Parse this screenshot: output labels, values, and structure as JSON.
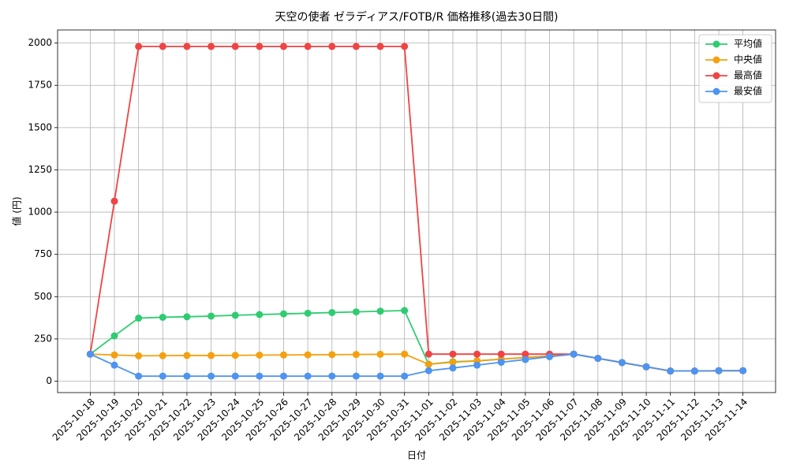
{
  "chart_data": {
    "type": "line",
    "title": "天空の使者 ゼラディアス/FOTB/R 価格推移(過去30日間)",
    "x_label": "日付",
    "y_label": "値 (円)",
    "categories": [
      "2025-10-18",
      "2025-10-19",
      "2025-10-20",
      "2025-10-21",
      "2025-10-22",
      "2025-10-23",
      "2025-10-24",
      "2025-10-25",
      "2025-10-26",
      "2025-10-27",
      "2025-10-28",
      "2025-10-29",
      "2025-10-30",
      "2025-10-31",
      "2025-11-01",
      "2025-11-02",
      "2025-11-03",
      "2025-11-04",
      "2025-11-05",
      "2025-11-06",
      "2025-11-07",
      "2025-11-08",
      "2025-11-09",
      "2025-11-10",
      "2025-11-11",
      "2025-11-12",
      "2025-11-13",
      "2025-11-14"
    ],
    "series": [
      {
        "name": "平均値",
        "color": "#2ecc71",
        "values": [
          160,
          268,
          373,
          378,
          381,
          385,
          390,
          394,
          398,
          402,
          406,
          410,
          414,
          418,
          100,
          115,
          120,
          130,
          140,
          150,
          160,
          135,
          110,
          85,
          60,
          60,
          62,
          62
        ]
      },
      {
        "name": "中央値",
        "color": "#f5a00f",
        "values": [
          160,
          155,
          150,
          151,
          152,
          152,
          153,
          154,
          155,
          156,
          157,
          158,
          159,
          160,
          100,
          112,
          120,
          130,
          140,
          150,
          160,
          135,
          110,
          85,
          60,
          60,
          62,
          62
        ]
      },
      {
        "name": "最高値",
        "color": "#ef4444",
        "values": [
          160,
          1065,
          1980,
          1980,
          1980,
          1980,
          1980,
          1980,
          1980,
          1980,
          1980,
          1980,
          1980,
          1980,
          160,
          160,
          160,
          160,
          160,
          160,
          160,
          135,
          110,
          85,
          60,
          60,
          62,
          62
        ]
      },
      {
        "name": "最安値",
        "color": "#4e94f0",
        "values": [
          160,
          95,
          30,
          30,
          30,
          30,
          30,
          30,
          30,
          30,
          30,
          30,
          30,
          30,
          62,
          78,
          95,
          112,
          128,
          145,
          160,
          135,
          110,
          85,
          60,
          60,
          62,
          62
        ]
      }
    ],
    "ylim": [
      -67.5,
      2077.5
    ],
    "yticks": [
      0,
      250,
      500,
      750,
      1000,
      1250,
      1500,
      1750,
      2000
    ],
    "grid": true,
    "legend": "upper right"
  }
}
